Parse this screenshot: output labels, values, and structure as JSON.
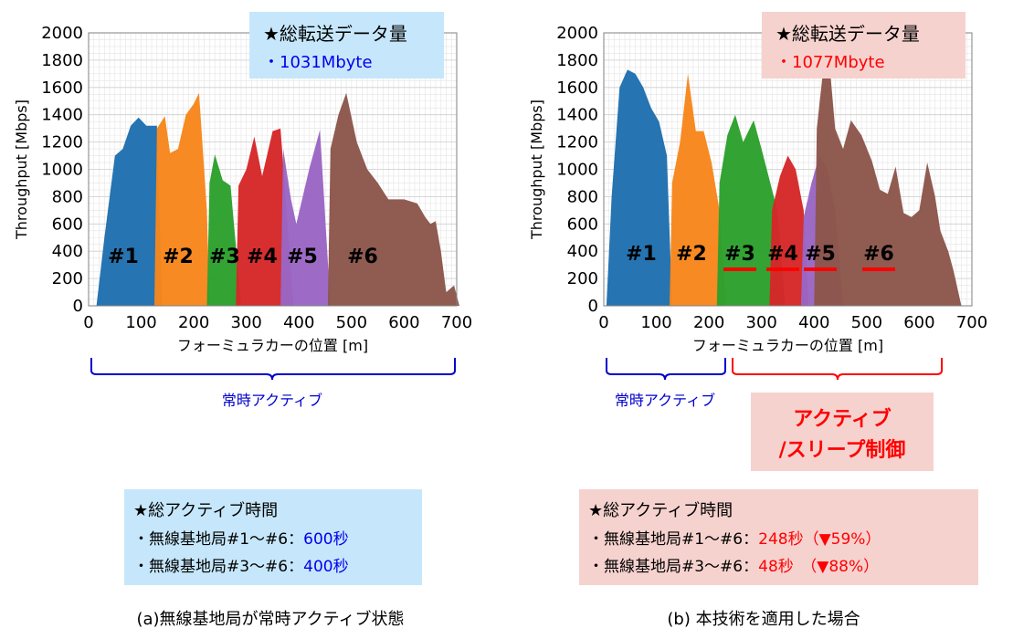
{
  "colors": {
    "s1": "#1f6fae",
    "s2": "#f7861c",
    "s3": "#2ca02c",
    "s4": "#d62728",
    "s5": "#9a66c4",
    "s6": "#8c564b",
    "blue_text": "#0000ee",
    "red_text": "#ff0000",
    "blue_panel": "#c6e7fb",
    "pink_panel": "#f6d2cf"
  },
  "chart_data": [
    {
      "type": "area",
      "panel": "a",
      "ylabel": "Throughput [Mbps]",
      "xlabel": "フォーミュラカーの位置 [m]",
      "xlim": [
        0,
        700
      ],
      "ylim": [
        0,
        2000
      ],
      "xticks": [
        "0",
        "100",
        "200",
        "300",
        "400",
        "500",
        "600",
        "700"
      ],
      "yticks": [
        "0",
        "200",
        "400",
        "600",
        "800",
        "1000",
        "1200",
        "1400",
        "1600",
        "1800",
        "2000"
      ],
      "grid": true,
      "series": [
        {
          "name": "#1",
          "points": [
            [
              15,
              0
            ],
            [
              30,
              500
            ],
            [
              50,
              1100
            ],
            [
              65,
              1150
            ],
            [
              80,
              1320
            ],
            [
              95,
              1380
            ],
            [
              110,
              1320
            ],
            [
              130,
              1320
            ],
            [
              140,
              0
            ]
          ]
        },
        {
          "name": "#2",
          "points": [
            [
              125,
              0
            ],
            [
              130,
              1300
            ],
            [
              145,
              1390
            ],
            [
              155,
              1120
            ],
            [
              170,
              1150
            ],
            [
              185,
              1400
            ],
            [
              200,
              1480
            ],
            [
              210,
              1560
            ],
            [
              225,
              700
            ],
            [
              230,
              0
            ]
          ]
        },
        {
          "name": "#3",
          "points": [
            [
              225,
              0
            ],
            [
              230,
              900
            ],
            [
              240,
              1110
            ],
            [
              255,
              920
            ],
            [
              270,
              880
            ],
            [
              290,
              0
            ]
          ]
        },
        {
          "name": "#4",
          "points": [
            [
              280,
              0
            ],
            [
              285,
              880
            ],
            [
              300,
              1000
            ],
            [
              315,
              1240
            ],
            [
              330,
              950
            ],
            [
              350,
              1280
            ],
            [
              365,
              1300
            ],
            [
              390,
              0
            ]
          ]
        },
        {
          "name": "#5",
          "points": [
            [
              365,
              0
            ],
            [
              370,
              1150
            ],
            [
              385,
              780
            ],
            [
              395,
              600
            ],
            [
              420,
              1010
            ],
            [
              440,
              1290
            ],
            [
              460,
              0
            ]
          ]
        },
        {
          "name": "#6",
          "points": [
            [
              455,
              0
            ],
            [
              460,
              1150
            ],
            [
              475,
              1400
            ],
            [
              490,
              1560
            ],
            [
              510,
              1200
            ],
            [
              530,
              1000
            ],
            [
              550,
              900
            ],
            [
              570,
              780
            ],
            [
              600,
              780
            ],
            [
              625,
              750
            ],
            [
              640,
              650
            ],
            [
              650,
              600
            ],
            [
              660,
              620
            ],
            [
              670,
              400
            ],
            [
              680,
              100
            ],
            [
              695,
              150
            ],
            [
              705,
              0
            ]
          ]
        }
      ],
      "labels": [
        "#1",
        "#2",
        "#3",
        "#4",
        "#5",
        "#6"
      ],
      "info_title": "★総転送データ量",
      "info_value": "・1031Mbyte",
      "brace_label": "常時アクティブ",
      "summary_title": "★総アクティブ時間",
      "summary_line1": "・無線基地局#1～#6：",
      "summary_value1": "600秒",
      "summary_line2": "・無線基地局#3～#6：",
      "summary_value2": "400秒",
      "caption": "(a)無線基地局が常時アクティブ状態"
    },
    {
      "type": "area",
      "panel": "b",
      "ylabel": "Throughput [Mbps]",
      "xlabel": "フォーミュラカーの位置 [m]",
      "xlim": [
        0,
        700
      ],
      "ylim": [
        0,
        2000
      ],
      "xticks": [
        "0",
        "100",
        "200",
        "300",
        "400",
        "500",
        "600",
        "700"
      ],
      "yticks": [
        "0",
        "200",
        "400",
        "600",
        "800",
        "1000",
        "1200",
        "1400",
        "1600",
        "1800",
        "2000"
      ],
      "grid": true,
      "series": [
        {
          "name": "#1",
          "points": [
            [
              5,
              0
            ],
            [
              15,
              800
            ],
            [
              30,
              1600
            ],
            [
              45,
              1730
            ],
            [
              60,
              1700
            ],
            [
              75,
              1600
            ],
            [
              90,
              1450
            ],
            [
              105,
              1350
            ],
            [
              120,
              1100
            ],
            [
              130,
              0
            ]
          ]
        },
        {
          "name": "#2",
          "points": [
            [
              125,
              0
            ],
            [
              130,
              900
            ],
            [
              145,
              1200
            ],
            [
              160,
              1700
            ],
            [
              175,
              1280
            ],
            [
              190,
              1280
            ],
            [
              205,
              1050
            ],
            [
              220,
              700
            ],
            [
              232,
              0
            ]
          ]
        },
        {
          "name": "#3",
          "points": [
            [
              215,
              0
            ],
            [
              220,
              900
            ],
            [
              235,
              1250
            ],
            [
              250,
              1400
            ],
            [
              265,
              1200
            ],
            [
              285,
              1360
            ],
            [
              300,
              1150
            ],
            [
              330,
              700
            ],
            [
              345,
              0
            ]
          ]
        },
        {
          "name": "#4",
          "points": [
            [
              315,
              0
            ],
            [
              320,
              700
            ],
            [
              335,
              950
            ],
            [
              350,
              1100
            ],
            [
              365,
              1000
            ],
            [
              380,
              700
            ],
            [
              390,
              0
            ]
          ]
        },
        {
          "name": "#5",
          "points": [
            [
              375,
              0
            ],
            [
              380,
              650
            ],
            [
              395,
              900
            ],
            [
              410,
              1100
            ],
            [
              425,
              1000
            ],
            [
              440,
              700
            ],
            [
              455,
              0
            ]
          ]
        },
        {
          "name": "#6",
          "points": [
            [
              400,
              0
            ],
            [
              405,
              1300
            ],
            [
              415,
              1650
            ],
            [
              425,
              1960
            ],
            [
              440,
              1300
            ],
            [
              455,
              1150
            ],
            [
              470,
              1360
            ],
            [
              490,
              1250
            ],
            [
              510,
              1060
            ],
            [
              525,
              850
            ],
            [
              540,
              820
            ],
            [
              555,
              1020
            ],
            [
              570,
              680
            ],
            [
              585,
              650
            ],
            [
              600,
              700
            ],
            [
              615,
              1050
            ],
            [
              630,
              800
            ],
            [
              640,
              550
            ],
            [
              655,
              400
            ],
            [
              665,
              260
            ],
            [
              680,
              0
            ]
          ]
        }
      ],
      "labels": [
        "#1",
        "#2",
        "#3",
        "#4",
        "#5",
        "#6"
      ],
      "info_title": "★総転送データ量",
      "info_value": "・1077Mbyte",
      "brace_label_left": "常時アクティブ",
      "brace_label_right_1": "アクティブ",
      "brace_label_right_2": "/スリープ制御",
      "summary_title": "★総アクティブ時間",
      "summary_line1": "・無線基地局#1～#6：",
      "summary_value1": "248秒（▼59%）",
      "summary_line2": "・無線基地局#3～#6：",
      "summary_value2": "48秒　（▼88%）",
      "caption": "(b)  本技術を適用した場合"
    }
  ]
}
